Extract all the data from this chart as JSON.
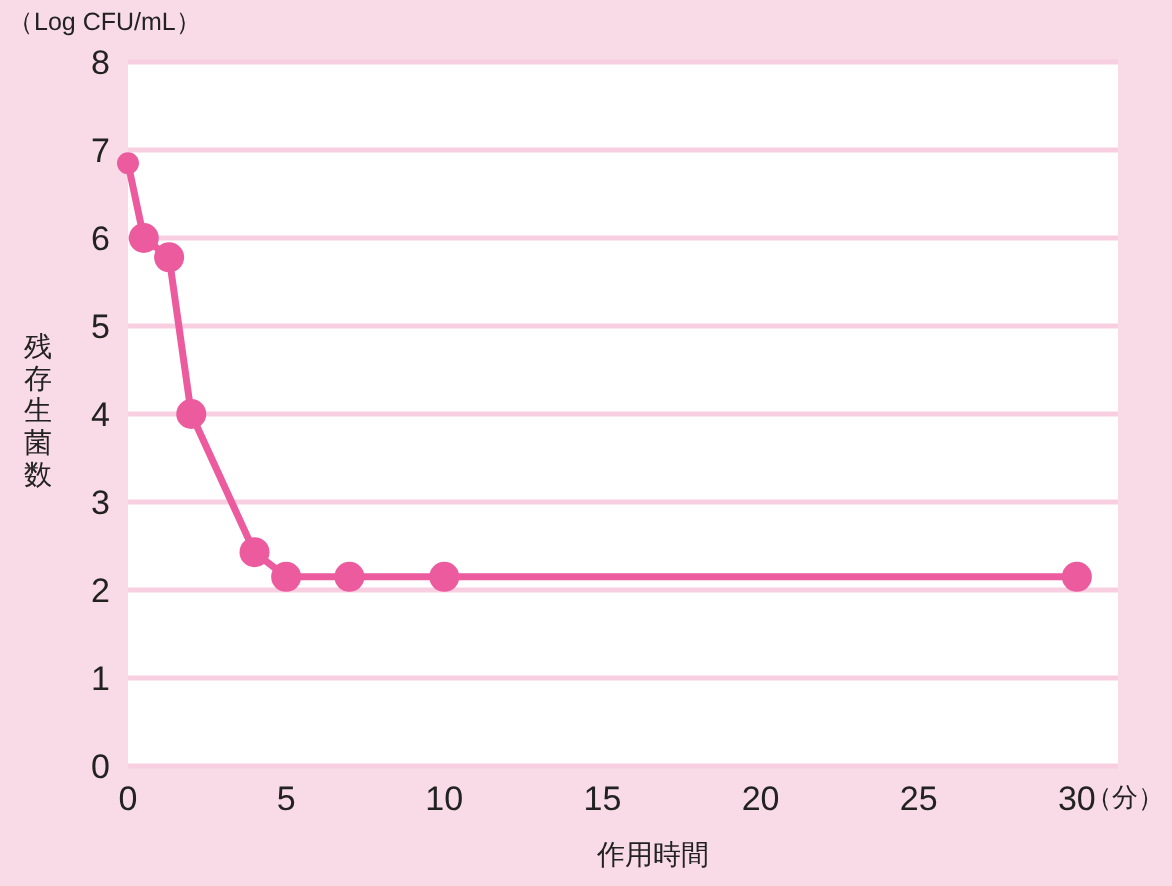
{
  "chart_data": {
    "type": "line",
    "xlabel": "作用時間",
    "ylabel": "残存生菌数",
    "annotations": [
      "（Log CFU/mL）",
      "（分）"
    ],
    "x": [
      0,
      0.5,
      1.3,
      2,
      4,
      5,
      7,
      10,
      30
    ],
    "series": [
      {
        "color": "#ec5b9e",
        "values": [
          6.85,
          6.0,
          5.78,
          4.0,
          2.43,
          2.15,
          2.15,
          2.15,
          2.15
        ]
      }
    ],
    "xlim": [
      0,
      31.3
    ],
    "xticks": [
      0,
      5,
      10,
      15,
      20,
      25,
      30
    ],
    "ylim": [
      0,
      8
    ],
    "yticks": [
      0,
      1,
      2,
      3,
      4,
      5,
      6,
      7,
      8
    ],
    "grid": "y",
    "marker": "circle",
    "line_style": "solid"
  }
}
